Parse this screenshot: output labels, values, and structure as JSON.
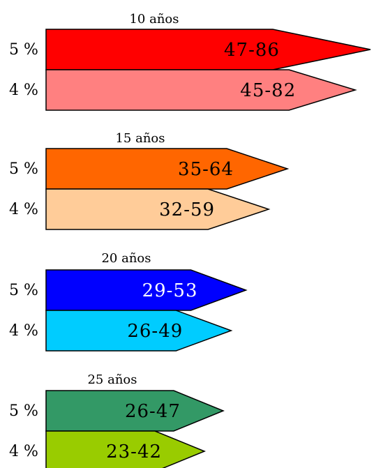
{
  "chart_data": {
    "type": "bar",
    "title": "",
    "xlabel": "",
    "ylabel": "",
    "groups": [
      {
        "title": "10 años",
        "bars": [
          {
            "category": "5 %",
            "value_label": "47-86",
            "low": 47,
            "high": 86,
            "color": "#ff0000",
            "text_color": "#000000"
          },
          {
            "category": "4 %",
            "value_label": "45-82",
            "low": 45,
            "high": 82,
            "color": "#ff8080",
            "text_color": "#000000"
          }
        ]
      },
      {
        "title": "15 años",
        "bars": [
          {
            "category": "5 %",
            "value_label": "35-64",
            "low": 35,
            "high": 64,
            "color": "#ff6600",
            "text_color": "#000000"
          },
          {
            "category": "4 %",
            "value_label": "32-59",
            "low": 32,
            "high": 59,
            "color": "#ffcc99",
            "text_color": "#000000"
          }
        ]
      },
      {
        "title": "20 años",
        "bars": [
          {
            "category": "5 %",
            "value_label": "29-53",
            "low": 29,
            "high": 53,
            "color": "#0000ff",
            "text_color": "#ffffff"
          },
          {
            "category": "4 %",
            "value_label": "26-49",
            "low": 26,
            "high": 49,
            "color": "#00ccff",
            "text_color": "#000000"
          }
        ]
      },
      {
        "title": "25 años",
        "bars": [
          {
            "category": "5 %",
            "value_label": "26-47",
            "low": 26,
            "high": 47,
            "color": "#339966",
            "text_color": "#000000"
          },
          {
            "category": "4 %",
            "value_label": "23-42",
            "low": 23,
            "high": 42,
            "color": "#99cc00",
            "text_color": "#000000"
          }
        ]
      }
    ]
  }
}
